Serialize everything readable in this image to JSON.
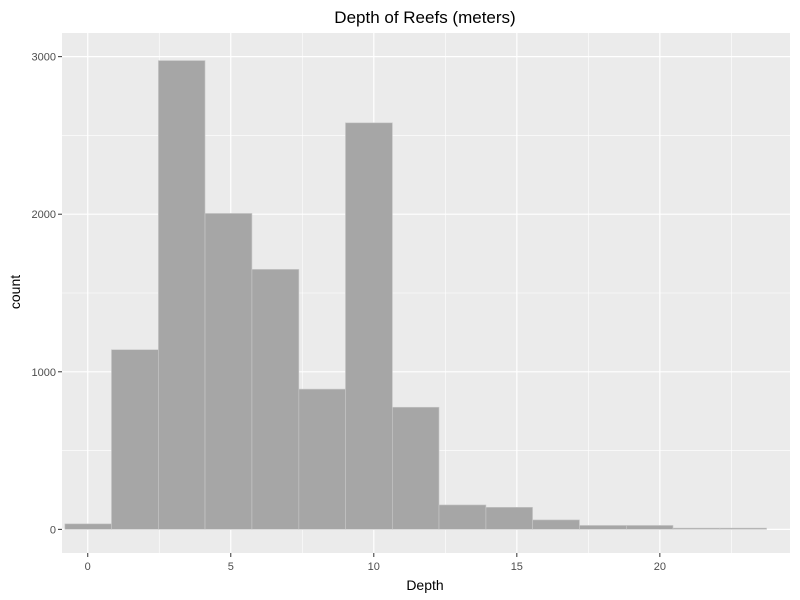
{
  "chart_data": {
    "type": "bar",
    "title": "Depth of Reefs (meters)",
    "xlabel": "Depth",
    "ylabel": "count",
    "xlim": [
      -0.9,
      24.55
    ],
    "ylim": [
      -150,
      3150
    ],
    "xticks": [
      0,
      5,
      10,
      15,
      20
    ],
    "yticks": [
      0,
      1000,
      2000,
      3000
    ],
    "grid": true,
    "bins": [
      {
        "x0": -0.8,
        "x1": 0.83,
        "value": 35
      },
      {
        "x0": 0.83,
        "x1": 2.47,
        "value": 1140
      },
      {
        "x0": 2.47,
        "x1": 4.1,
        "value": 2975
      },
      {
        "x0": 4.1,
        "x1": 5.74,
        "value": 2005
      },
      {
        "x0": 5.74,
        "x1": 7.38,
        "value": 1650
      },
      {
        "x0": 7.38,
        "x1": 9.01,
        "value": 890
      },
      {
        "x0": 9.01,
        "x1": 10.65,
        "value": 2580
      },
      {
        "x0": 10.65,
        "x1": 12.28,
        "value": 775
      },
      {
        "x0": 12.28,
        "x1": 13.92,
        "value": 155
      },
      {
        "x0": 13.92,
        "x1": 15.55,
        "value": 140
      },
      {
        "x0": 15.55,
        "x1": 17.19,
        "value": 60
      },
      {
        "x0": 17.19,
        "x1": 18.83,
        "value": 25
      },
      {
        "x0": 18.83,
        "x1": 20.46,
        "value": 25
      },
      {
        "x0": 20.46,
        "x1": 22.1,
        "value": 8
      },
      {
        "x0": 22.1,
        "x1": 23.73,
        "value": 8
      }
    ],
    "colors": {
      "panel_background": "#ebebeb",
      "grid": "#ffffff",
      "bar_fill": "#a6a6a6",
      "bar_outline": "#c8c8c8"
    }
  }
}
